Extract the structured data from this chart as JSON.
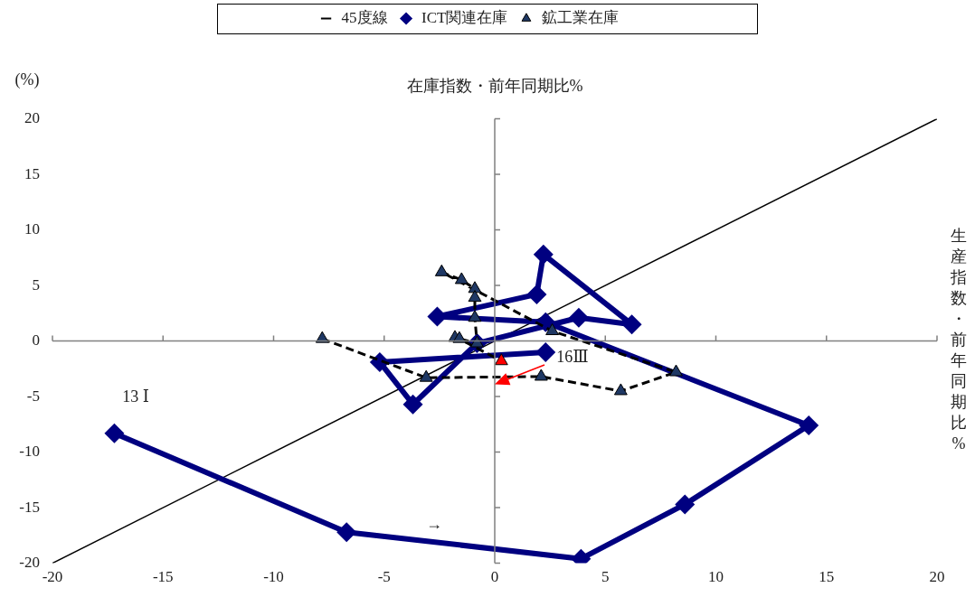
{
  "chart_data": {
    "type": "line",
    "xlabel": "在庫指数・前年同期比%",
    "ylabel": "生産指数・前年同期比%",
    "legend": "top",
    "xlim": [
      -20,
      20
    ],
    "xticks": [
      -20,
      -15,
      -10,
      -5,
      0,
      5,
      10,
      15,
      20
    ],
    "ylim": [
      -20,
      20
    ],
    "yticks": [
      -20,
      -15,
      -10,
      -5,
      0,
      5,
      10,
      15,
      20
    ],
    "annotations": [
      "(%)",
      "13 Ⅰ",
      {
        "text": "16Ⅲ",
        "x": 2.3,
        "y": -1.0
      },
      "→"
    ],
    "series": [
      {
        "name": "45度線",
        "color": "#000000",
        "marker": "none",
        "line_style": "solid",
        "x": [
          -20,
          20
        ],
        "values": [
          -20,
          20
        ]
      },
      {
        "name": "ICT関連在庫",
        "color": "#000080",
        "marker": "diamond",
        "line_style": "solid",
        "x": [
          -17.2,
          -6.7,
          3.9,
          8.6,
          14.2,
          2.3,
          -2.6,
          1.9,
          2.2,
          6.2,
          3.8,
          -0.8,
          -3.7,
          -5.2,
          2.3
        ],
        "values": [
          -8.3,
          -17.2,
          -19.6,
          -14.7,
          -7.6,
          1.7,
          2.2,
          4.2,
          7.8,
          1.5,
          2.1,
          -0.2,
          -5.7,
          -1.9,
          -1.0
        ]
      },
      {
        "name": "鉱工業在庫",
        "color": "#000000",
        "marker": "triangle",
        "line_style": "dashed",
        "colors": [
          "#1f3864",
          "#1f3864",
          "#1f3864",
          "#1f3864",
          "#1f3864",
          "#1f3864",
          "#1f3864",
          "#1f3864",
          "#1f3864",
          "#1f3864",
          "#1f3864",
          "#1f3864",
          "#1f3864",
          "#1f3864",
          "#ff0000"
        ],
        "x": [
          -7.8,
          -3.1,
          2.1,
          5.7,
          8.2,
          2.6,
          -2.4,
          -1.5,
          -0.9,
          -0.9,
          -0.9,
          -0.8,
          -1.8,
          -1.6,
          0.3
        ],
        "values": [
          0.2,
          -3.3,
          -3.2,
          -4.5,
          -2.8,
          0.9,
          6.2,
          5.5,
          4.7,
          3.9,
          2.1,
          -0.2,
          0.3,
          0.2,
          -1.8
        ]
      }
    ]
  }
}
